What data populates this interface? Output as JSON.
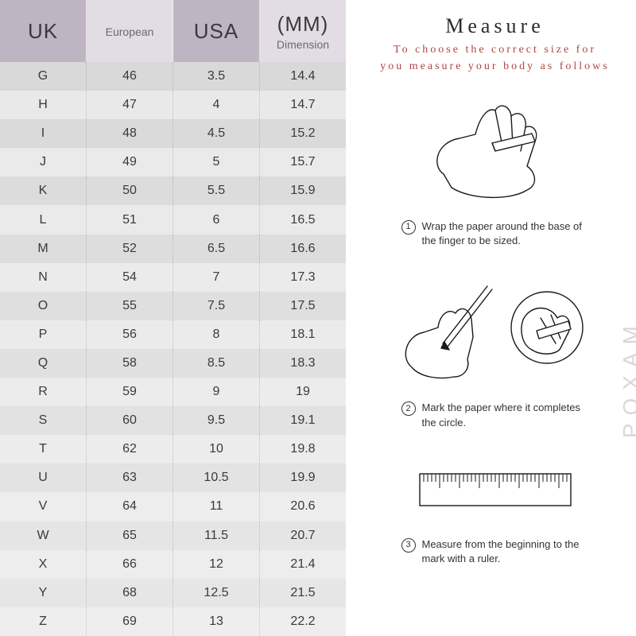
{
  "table": {
    "header_bg_colors": [
      "#beb4c2",
      "#e2dde5",
      "#beb4c2",
      "#e2dde5"
    ],
    "row_alt_colors": [
      "#d9d9d9",
      "#e9e9e9"
    ],
    "bg_gradient_end": "#f2f2f2",
    "columns": [
      {
        "big": "UK",
        "small": ""
      },
      {
        "big": "",
        "small": "European"
      },
      {
        "big": "USA",
        "small": ""
      },
      {
        "big": "(MM)",
        "small": "Dimension"
      }
    ],
    "rows": [
      [
        "G",
        "46",
        "3.5",
        "14.4"
      ],
      [
        "H",
        "47",
        "4",
        "14.7"
      ],
      [
        "I",
        "48",
        "4.5",
        "15.2"
      ],
      [
        "J",
        "49",
        "5",
        "15.7"
      ],
      [
        "K",
        "50",
        "5.5",
        "15.9"
      ],
      [
        "L",
        "51",
        "6",
        "16.5"
      ],
      [
        "M",
        "52",
        "6.5",
        "16.6"
      ],
      [
        "N",
        "54",
        "7",
        "17.3"
      ],
      [
        "O",
        "55",
        "7.5",
        "17.5"
      ],
      [
        "P",
        "56",
        "8",
        "18.1"
      ],
      [
        "Q",
        "58",
        "8.5",
        "18.3"
      ],
      [
        "R",
        "59",
        "9",
        "19"
      ],
      [
        "S",
        "60",
        "9.5",
        "19.1"
      ],
      [
        "T",
        "62",
        "10",
        "19.8"
      ],
      [
        "U",
        "63",
        "10.5",
        "19.9"
      ],
      [
        "V",
        "64",
        "11",
        "20.6"
      ],
      [
        "W",
        "65",
        "11.5",
        "20.7"
      ],
      [
        "X",
        "66",
        "12",
        "21.4"
      ],
      [
        "Y",
        "68",
        "12.5",
        "21.5"
      ],
      [
        "Z",
        "69",
        "13",
        "22.2"
      ]
    ]
  },
  "measure": {
    "title": "Measure",
    "subtitle_line1": "To choose the correct size for",
    "subtitle_line2": "you measure your body as follows",
    "subtitle_color": "#b1443f",
    "steps": [
      {
        "num": "1",
        "text": "Wrap the paper around the base of the finger to be sized."
      },
      {
        "num": "2",
        "text": "Mark the paper where it completes the circle."
      },
      {
        "num": "3",
        "text": "Measure from the beginning to the mark with a ruler."
      }
    ]
  },
  "watermark": "POXAM"
}
